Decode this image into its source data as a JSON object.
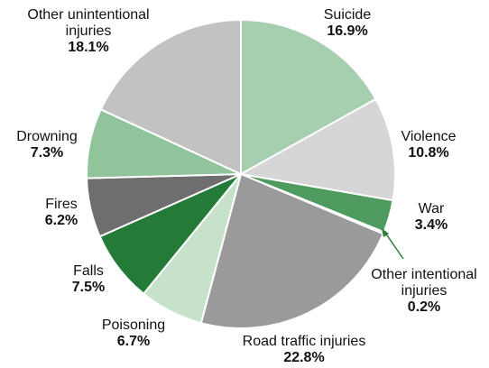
{
  "chart_data": {
    "type": "pie",
    "categories": [
      "Suicide",
      "Violence",
      "War",
      "Other intentional injuries",
      "Road traffic injuries",
      "Poisoning",
      "Falls",
      "Fires",
      "Drowning",
      "Other unintentional injuries"
    ],
    "values": [
      16.9,
      10.8,
      3.4,
      0.2,
      22.8,
      6.7,
      7.5,
      6.2,
      7.3,
      18.1
    ],
    "value_labels": [
      "16.9%",
      "10.8%",
      "3.4%",
      "0.2%",
      "22.8%",
      "6.7%",
      "7.5%",
      "6.2%",
      "7.3%",
      "18.1%"
    ],
    "colors": [
      "#a6cfaf",
      "#d6d6d6",
      "#4f9a5e",
      "#2e7d3e",
      "#9a9a9a",
      "#c6e2cb",
      "#237b37",
      "#6e6e6e",
      "#90c49b",
      "#c2c2c2"
    ]
  }
}
